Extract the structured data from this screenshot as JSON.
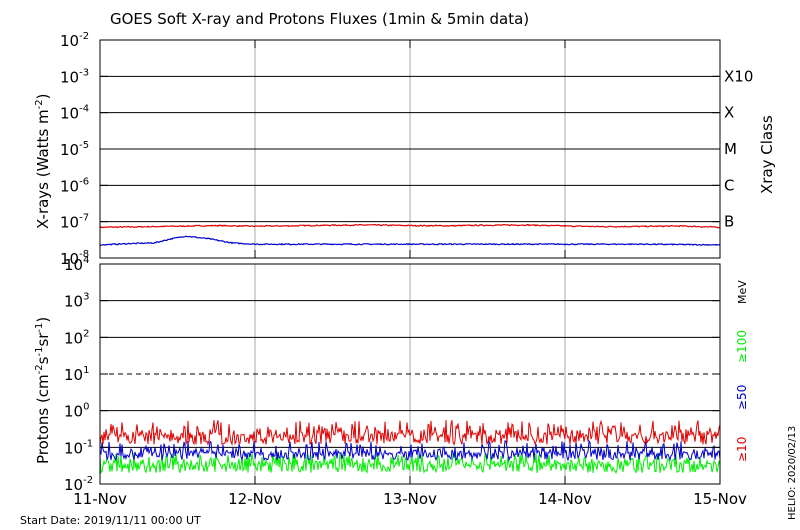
{
  "title": "GOES Soft X-ray and Protons Fluxes   (1min & 5min data)",
  "footer": {
    "start_date": "Start Date: 2019/11/11 00:00 UT",
    "credit": "HELIO: 2020/02/13"
  },
  "colors": {
    "red": "#e00000",
    "blue": "#0000cc",
    "green": "#00ee00",
    "grid": "#aaaaaa",
    "axis": "#000000"
  },
  "chart_data": [
    {
      "type": "line",
      "panel": "xray",
      "ylabel_text": "X-rays (Watts m",
      "ylabel_sup": "-2",
      "ylabel_close": ")",
      "log_scale": true,
      "ylim": [
        1e-08,
        0.01
      ],
      "y_ticks": [
        {
          "base": "10",
          "exp": "-2",
          "value": 0.01
        },
        {
          "base": "10",
          "exp": "-3",
          "value": 0.001
        },
        {
          "base": "10",
          "exp": "-4",
          "value": 0.0001
        },
        {
          "base": "10",
          "exp": "-5",
          "value": 1e-05
        },
        {
          "base": "10",
          "exp": "-6",
          "value": 1e-06
        },
        {
          "base": "10",
          "exp": "-7",
          "value": 1e-07
        },
        {
          "base": "10",
          "exp": "-8",
          "value": 1e-08
        }
      ],
      "class_label": "Xray Class",
      "classes": [
        {
          "label": "X10",
          "value": 0.001
        },
        {
          "label": "X",
          "value": 0.0001
        },
        {
          "label": "M",
          "value": 1e-05
        },
        {
          "label": "C",
          "value": 1e-06
        },
        {
          "label": "B",
          "value": 1e-07
        }
      ],
      "xlim_days": [
        0,
        4
      ],
      "series": [
        {
          "color": "red",
          "x_days": [
            0,
            0.25,
            0.5,
            0.75,
            1.0,
            1.25,
            1.5,
            1.75,
            2.0,
            2.25,
            2.5,
            2.75,
            3.0,
            3.25,
            3.5,
            3.75,
            4.0
          ],
          "values": [
            7e-08,
            7.2e-08,
            7.5e-08,
            7.8e-08,
            7.5e-08,
            7.7e-08,
            8e-08,
            8.1e-08,
            7.8e-08,
            7.7e-08,
            8e-08,
            8.1e-08,
            7.6e-08,
            7.3e-08,
            7.4e-08,
            7.6e-08,
            7e-08
          ]
        },
        {
          "color": "blue",
          "x_days": [
            0,
            0.2,
            0.35,
            0.45,
            0.55,
            0.7,
            0.85,
            1.0,
            1.5,
            2.0,
            2.5,
            3.0,
            3.5,
            4.0
          ],
          "values": [
            2.3e-08,
            2.5e-08,
            2.6e-08,
            3.3e-08,
            4e-08,
            3.4e-08,
            2.6e-08,
            2.4e-08,
            2.4e-08,
            2.4e-08,
            2.4e-08,
            2.4e-08,
            2.4e-08,
            2.3e-08
          ]
        }
      ]
    },
    {
      "type": "line",
      "panel": "protons",
      "ylabel_text": "Protons (cm",
      "ylabel_sup1": "-2",
      "ylabel_mid": "s",
      "ylabel_sup2": "-1",
      "ylabel_mid2": "sr",
      "ylabel_sup3": "-1",
      "ylabel_close": ")",
      "log_scale": true,
      "ylim": [
        0.01,
        10000
      ],
      "y_ticks": [
        {
          "base": "10",
          "exp": "4",
          "value": 10000
        },
        {
          "base": "10",
          "exp": "3",
          "value": 1000
        },
        {
          "base": "10",
          "exp": "2",
          "value": 100
        },
        {
          "base": "10",
          "exp": "1",
          "value": 10
        },
        {
          "base": "10",
          "exp": "0",
          "value": 1
        },
        {
          "base": "10",
          "exp": "-1",
          "value": 0.1
        },
        {
          "base": "10",
          "exp": "-2",
          "value": 0.01
        }
      ],
      "threshold_value": 10,
      "unit_label": "MeV",
      "energy_labels": [
        {
          "text": "≥100",
          "color": "green"
        },
        {
          "text": "≥50",
          "color": "blue"
        },
        {
          "text": "≥10",
          "color": "red"
        }
      ],
      "xlim_days": [
        0,
        4
      ],
      "series": [
        {
          "color": "red",
          "typical": 0.22,
          "min": 0.12,
          "max": 0.55
        },
        {
          "color": "blue",
          "typical": 0.07,
          "min": 0.045,
          "max": 0.15
        },
        {
          "color": "green",
          "typical": 0.035,
          "min": 0.02,
          "max": 0.07
        }
      ]
    }
  ],
  "x_axis": {
    "ticks": [
      {
        "label": "11-Nov",
        "day": 0
      },
      {
        "label": "12-Nov",
        "day": 1
      },
      {
        "label": "13-Nov",
        "day": 2
      },
      {
        "label": "14-Nov",
        "day": 3
      },
      {
        "label": "15-Nov",
        "day": 4
      }
    ]
  }
}
